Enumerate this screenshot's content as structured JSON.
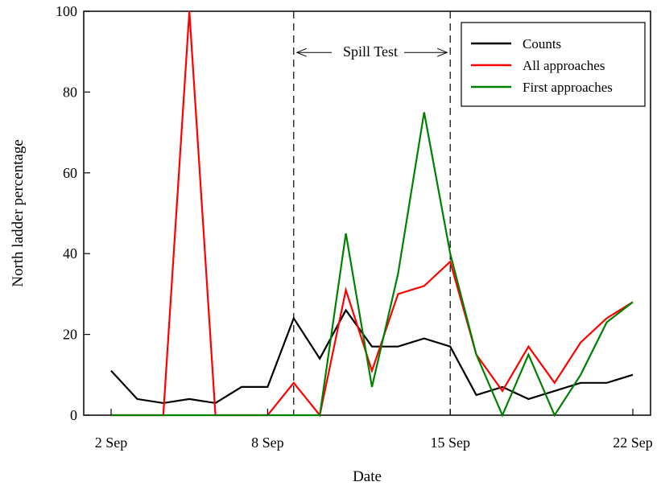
{
  "chart_data": {
    "type": "line",
    "xlabel": "Date",
    "ylabel": "North ladder percentage",
    "ylim": [
      0,
      100
    ],
    "xlim": [
      "2 Sep",
      "22 Sep"
    ],
    "yticks": [
      0,
      20,
      40,
      60,
      80,
      100
    ],
    "xticks": [
      "2 Sep",
      "8 Sep",
      "15 Sep",
      "22 Sep"
    ],
    "x": [
      "2 Sep",
      "3 Sep",
      "4 Sep",
      "5 Sep",
      "6 Sep",
      "7 Sep",
      "8 Sep",
      "9 Sep",
      "10 Sep",
      "11 Sep",
      "12 Sep",
      "13 Sep",
      "14 Sep",
      "15 Sep",
      "16 Sep",
      "17 Sep",
      "18 Sep",
      "19 Sep",
      "20 Sep",
      "21 Sep",
      "22 Sep"
    ],
    "series": [
      {
        "name": "Counts",
        "color": "#000000",
        "values": [
          11,
          4,
          3,
          4,
          3,
          7,
          7,
          24,
          14,
          26,
          17,
          17,
          19,
          17,
          5,
          7,
          4,
          6,
          8,
          8,
          10
        ]
      },
      {
        "name": "All approaches",
        "color": "#ff0000",
        "values": [
          0,
          0,
          0,
          100,
          0,
          0,
          0,
          8,
          0,
          31,
          11,
          30,
          32,
          38,
          15,
          6,
          17,
          8,
          18,
          24,
          28
        ]
      },
      {
        "name": "First approaches",
        "color": "#008000",
        "values": [
          0,
          0,
          0,
          0,
          0,
          0,
          0,
          0,
          0,
          45,
          7,
          35,
          75,
          40,
          15,
          0,
          15,
          0,
          10,
          23,
          28
        ]
      }
    ],
    "vlines": [
      "9 Sep",
      "15 Sep"
    ],
    "annotation": {
      "text": "Spill Test",
      "from": "9 Sep",
      "to": "15 Sep",
      "y": 90
    },
    "legend": "top-right",
    "grid": false
  }
}
